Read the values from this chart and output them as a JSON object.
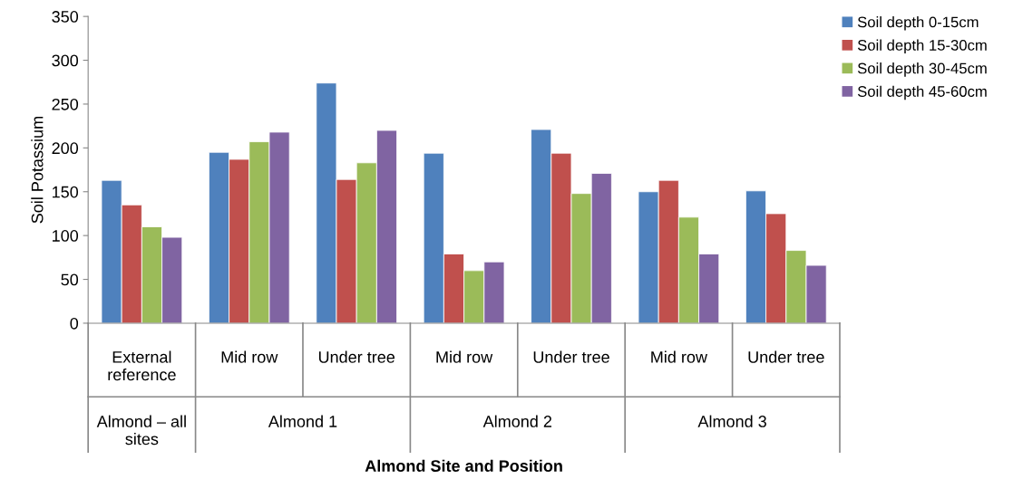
{
  "chart_data": {
    "type": "bar",
    "xlabel": "Almond Site and Position",
    "ylabel": "Soil Potassium",
    "categories": [
      "External\nreference",
      "Mid row",
      "Under tree",
      "Mid row",
      "Under tree",
      "Mid row",
      "Under tree"
    ],
    "annotations": [
      "Almond – all\nsites",
      "Almond 1",
      "Almond 2",
      "Almond 3"
    ],
    "series": [
      {
        "name": "Soil depth 0-15cm",
        "color": "#4f81bd",
        "values": [
          163,
          195,
          274,
          194,
          221,
          150,
          151
        ]
      },
      {
        "name": "Soil depth 15-30cm",
        "color": "#c0504d",
        "values": [
          135,
          187,
          164,
          79,
          194,
          163,
          125
        ]
      },
      {
        "name": "Soil depth 30-45cm",
        "color": "#9bbb59",
        "values": [
          110,
          207,
          183,
          60,
          148,
          121,
          83
        ]
      },
      {
        "name": "Soil depth 45-60cm",
        "color": "#8064a2",
        "values": [
          98,
          218,
          220,
          70,
          171,
          79,
          66
        ]
      }
    ],
    "ylim": [
      0,
      350
    ],
    "yticks": [
      0,
      50,
      100,
      150,
      200,
      250,
      300,
      350
    ],
    "grid": false,
    "legend": "top right"
  }
}
